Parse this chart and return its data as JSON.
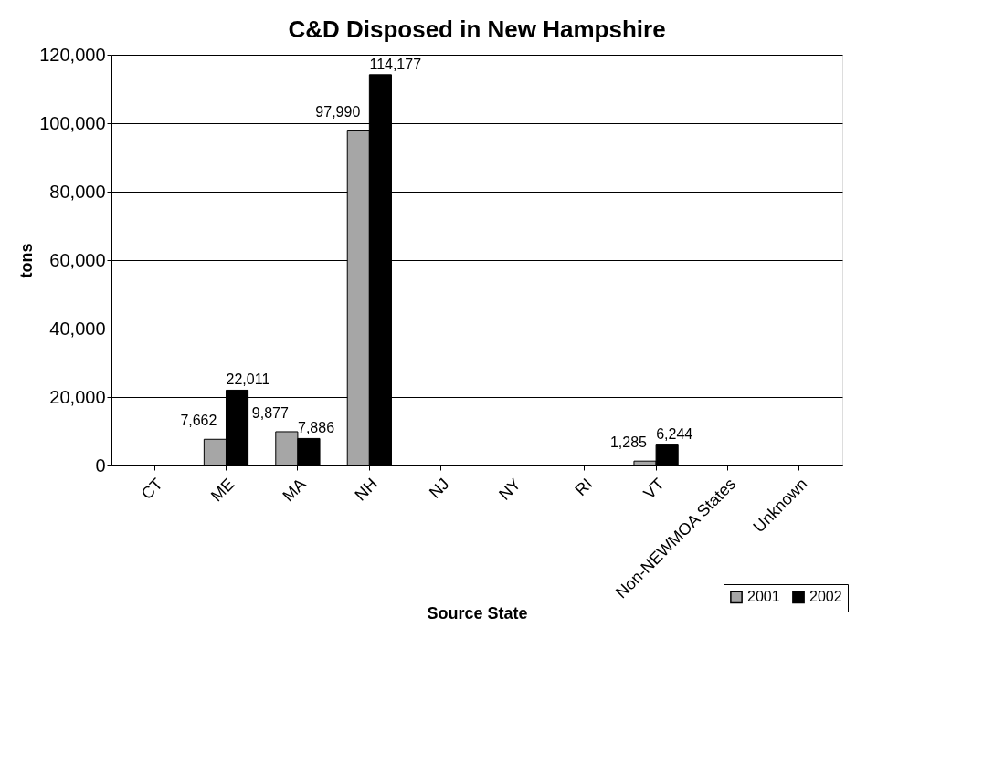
{
  "chart_data": {
    "type": "bar",
    "title": "C&D Disposed in New Hampshire",
    "xlabel": "Source State",
    "ylabel": "tons",
    "categories": [
      "CT",
      "ME",
      "MA",
      "NH",
      "NJ",
      "NY",
      "RI",
      "VT",
      "Non-NEWMOA States",
      "Unknown"
    ],
    "series": [
      {
        "name": "2001",
        "color": "#a6a6a6",
        "values": [
          null,
          7662,
          9877,
          97990,
          null,
          null,
          null,
          1285,
          null,
          null
        ],
        "value_labels": [
          null,
          "7,662",
          "9,877",
          "97,990",
          null,
          null,
          null,
          "1,285",
          null,
          null
        ]
      },
      {
        "name": "2002",
        "color": "#000000",
        "values": [
          null,
          22011,
          7886,
          114177,
          null,
          null,
          null,
          6244,
          null,
          null
        ],
        "value_labels": [
          null,
          "22,011",
          "7,886",
          "114,177",
          null,
          null,
          null,
          "6,244",
          null,
          null
        ]
      }
    ],
    "ylim": [
      0,
      120000
    ],
    "yticks": [
      {
        "value": 0,
        "label": "0"
      },
      {
        "value": 20000,
        "label": "20,000"
      },
      {
        "value": 40000,
        "label": "40,000"
      },
      {
        "value": 60000,
        "label": "60,000"
      },
      {
        "value": 80000,
        "label": "80,000"
      },
      {
        "value": 100000,
        "label": "100,000"
      },
      {
        "value": 120000,
        "label": "120,000"
      }
    ],
    "grid": "y",
    "legend": "bottom right"
  }
}
